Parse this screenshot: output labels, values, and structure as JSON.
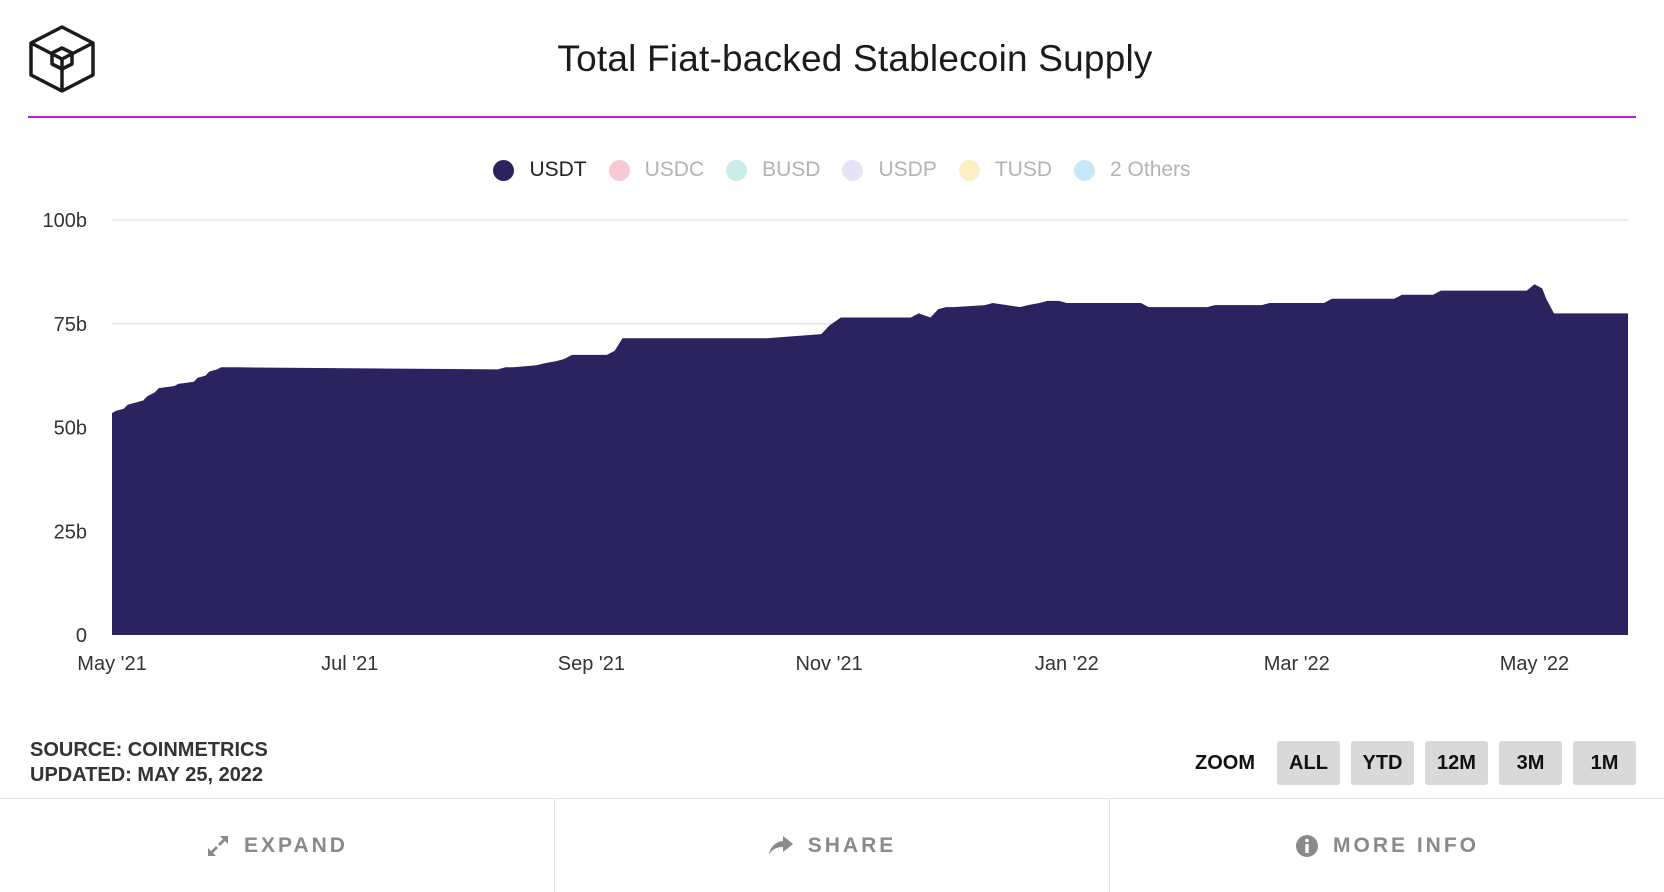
{
  "title": "Total Fiat-backed Stablecoin Supply",
  "legend": [
    {
      "label": "USDT",
      "color": "#2b2360",
      "active": true
    },
    {
      "label": "USDC",
      "color": "#f7c9d2",
      "active": false
    },
    {
      "label": "BUSD",
      "color": "#c9ece6",
      "active": false
    },
    {
      "label": "USDP",
      "color": "#e7e3f6",
      "active": false
    },
    {
      "label": "TUSD",
      "color": "#fcefc6",
      "active": false
    },
    {
      "label": "2 Others",
      "color": "#c6e9f9",
      "active": false
    }
  ],
  "source": "SOURCE: COINMETRICS",
  "updated": "UPDATED: MAY 25, 2022",
  "zoom": {
    "label": "ZOOM",
    "options": [
      "ALL",
      "YTD",
      "12M",
      "3M",
      "1M"
    ]
  },
  "footer": {
    "expand": "EXPAND",
    "share": "SHARE",
    "more_info": "MORE INFO"
  },
  "colors": {
    "area": "#2b2360",
    "accent_rule": "#b21ee6",
    "grid": "#e6e6e6",
    "axis_text": "#333333"
  },
  "chart_data": {
    "type": "area",
    "title": "Total Fiat-backed Stablecoin Supply",
    "xlabel": "",
    "ylabel": "",
    "ylim": [
      0,
      100
    ],
    "y_unit": "b",
    "y_ticks": [
      "0",
      "25b",
      "50b",
      "75b",
      "100b"
    ],
    "x_ticks": [
      {
        "date": "2021-05-01",
        "label": "May '21"
      },
      {
        "date": "2021-07-01",
        "label": "Jul '21"
      },
      {
        "date": "2021-09-01",
        "label": "Sep '21"
      },
      {
        "date": "2021-11-01",
        "label": "Nov '21"
      },
      {
        "date": "2022-01-01",
        "label": "Jan '22"
      },
      {
        "date": "2022-03-01",
        "label": "Mar '22"
      },
      {
        "date": "2022-05-01",
        "label": "May '22"
      }
    ],
    "x_range": [
      "2021-05-01",
      "2022-05-25"
    ],
    "grid": true,
    "legend_position": "top-center",
    "series": [
      {
        "name": "USDT",
        "color": "#2b2360",
        "x": [
          "2021-05-01",
          "2021-05-02",
          "2021-05-04",
          "2021-05-05",
          "2021-05-09",
          "2021-05-10",
          "2021-05-12",
          "2021-05-13",
          "2021-05-17",
          "2021-05-18",
          "2021-05-22",
          "2021-05-23",
          "2021-05-25",
          "2021-05-26",
          "2021-05-28",
          "2021-05-29",
          "2021-06-01",
          "2021-06-02",
          "2021-08-08",
          "2021-08-10",
          "2021-08-12",
          "2021-08-18",
          "2021-08-20",
          "2021-08-23",
          "2021-08-25",
          "2021-08-27",
          "2021-08-29",
          "2021-09-05",
          "2021-09-07",
          "2021-09-09",
          "2021-09-30",
          "2021-10-16",
          "2021-10-30",
          "2021-11-01",
          "2021-11-04",
          "2021-11-06",
          "2021-11-22",
          "2021-11-24",
          "2021-11-27",
          "2021-11-29",
          "2021-12-01",
          "2021-12-03",
          "2021-12-11",
          "2021-12-13",
          "2021-12-20",
          "2021-12-22",
          "2021-12-25",
          "2021-12-27",
          "2021-12-30",
          "2022-01-01",
          "2022-01-05",
          "2022-01-07",
          "2022-01-20",
          "2022-01-22",
          "2022-02-06",
          "2022-02-08",
          "2022-02-20",
          "2022-02-22",
          "2022-03-08",
          "2022-03-10",
          "2022-03-26",
          "2022-03-28",
          "2022-04-05",
          "2022-04-07",
          "2022-04-29",
          "2022-05-01",
          "2022-05-03",
          "2022-05-04",
          "2022-05-06",
          "2022-05-08",
          "2022-05-25"
        ],
        "values": [
          53.5,
          54,
          54.5,
          55.5,
          56.5,
          57.5,
          58.5,
          59.5,
          60.0,
          60.5,
          61.0,
          62.0,
          62.5,
          63.5,
          64.0,
          64.5,
          64.5,
          64.5,
          64.0,
          64.5,
          64.5,
          65.0,
          65.5,
          66.0,
          66.5,
          67.5,
          67.5,
          67.5,
          68.5,
          71.5,
          71.5,
          71.5,
          72.5,
          74.5,
          76.5,
          76.5,
          76.5,
          77.5,
          76.5,
          78.5,
          79.0,
          79.0,
          79.5,
          80.0,
          79.0,
          79.5,
          80.0,
          80.5,
          80.5,
          80.0,
          80.0,
          80.0,
          80.0,
          79.0,
          79.0,
          79.5,
          79.5,
          80.0,
          80.0,
          81.0,
          81.0,
          82.0,
          82.0,
          83.0,
          83.0,
          84.5,
          83.5,
          81.0,
          77.5,
          77.5,
          77.5
        ]
      }
    ]
  }
}
